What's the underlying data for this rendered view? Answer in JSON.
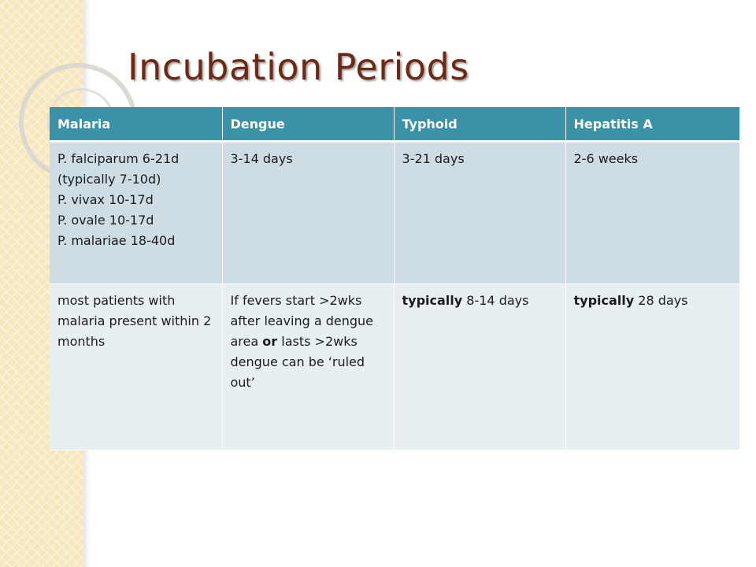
{
  "slide": {
    "title": "Incubation Periods"
  },
  "table": {
    "headers": [
      "Malaria",
      "Dengue",
      "Typhoid",
      "Hepatitis A"
    ],
    "row1": {
      "malaria_lines": [
        "P. falciparum 6-21d",
        "(typically 7-10d)",
        "P. vivax 10-17d",
        "P. ovale 10-17d",
        "P. malariae 18-40d"
      ],
      "dengue": "3-14 days",
      "typhoid": "3-21 days",
      "hepatitis_a": "2-6 weeks"
    },
    "row2": {
      "malaria": "most patients with malaria present within 2 months",
      "dengue_part1": "If fevers start >2wks after leaving a dengue area",
      "dengue_or": "or",
      "dengue_part2": " lasts >2wks dengue can be ‘ruled out’",
      "typhoid_bold": "typically",
      "typhoid_rest": " 8-14 days",
      "hepatitis_bold": "typically",
      "hepatitis_rest": " 28 days"
    }
  },
  "colors": {
    "title": "#6b2a16",
    "header_bg": "#3a92a6",
    "row1_bg": "#cddde3",
    "row2_bg": "#e8eff2",
    "side_band": "#f7e7bd"
  }
}
